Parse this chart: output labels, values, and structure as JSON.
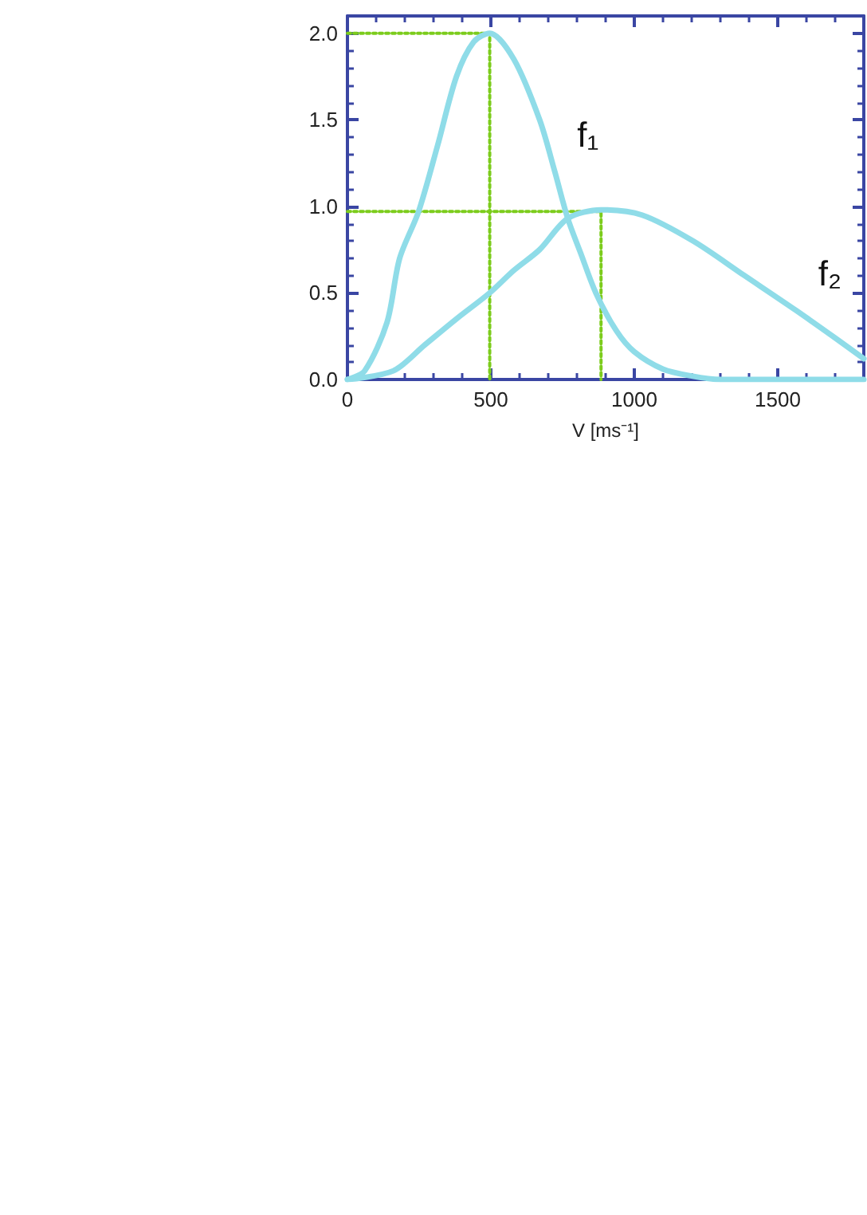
{
  "chart_data": {
    "type": "line",
    "xlabel": "V [ms⁻¹]",
    "xlim": [
      0,
      1800
    ],
    "xticks": [
      0,
      500,
      1000,
      1500
    ],
    "ylim": [
      0,
      2.1
    ],
    "yticks": [
      {
        "value": 0,
        "label": "0.0"
      },
      {
        "value": 0.5,
        "label": "0.5"
      },
      {
        "value": 1,
        "label": "1.0"
      },
      {
        "value": 1.5,
        "label": "1.5"
      },
      {
        "value": 2,
        "label": "2.0"
      }
    ],
    "grid": false,
    "legend": false,
    "line_style": "solid",
    "series": [
      {
        "name": "f₁",
        "color": "#8fdce8",
        "x": [
          0,
          60,
          138,
          182,
          248,
          314,
          380,
          440,
          496,
          580,
          670,
          723,
          768,
          813,
          866,
          938,
          1000,
          1100,
          1200,
          1300,
          1500,
          1800
        ],
        "values": [
          0,
          0.05,
          0.33,
          0.7,
          0.97,
          1.35,
          1.75,
          1.95,
          2.0,
          1.85,
          1.5,
          1.2,
          0.93,
          0.73,
          0.5,
          0.28,
          0.16,
          0.06,
          0.02,
          0,
          0,
          0
        ]
      },
      {
        "name": "f₂",
        "color": "#8fdce8",
        "x": [
          0,
          160,
          270,
          380,
          496,
          580,
          670,
          768,
          884,
          1027,
          1205,
          1384,
          1563,
          1700,
          1800
        ],
        "values": [
          0,
          0.05,
          0.2,
          0.35,
          0.5,
          0.63,
          0.75,
          0.93,
          0.98,
          0.95,
          0.8,
          0.6,
          0.4,
          0.24,
          0.12
        ]
      },
      {
        "type": "line",
        "color": "#7ccc1c",
        "line_style": "dotted",
        "x": [
          0,
          496,
          496
        ],
        "values": [
          2.0,
          2.0,
          0
        ]
      },
      {
        "type": "line",
        "color": "#7ccc1c",
        "line_style": "dotted",
        "x": [
          0,
          884,
          884
        ],
        "values": [
          0.97,
          0.97,
          0
        ]
      }
    ]
  }
}
